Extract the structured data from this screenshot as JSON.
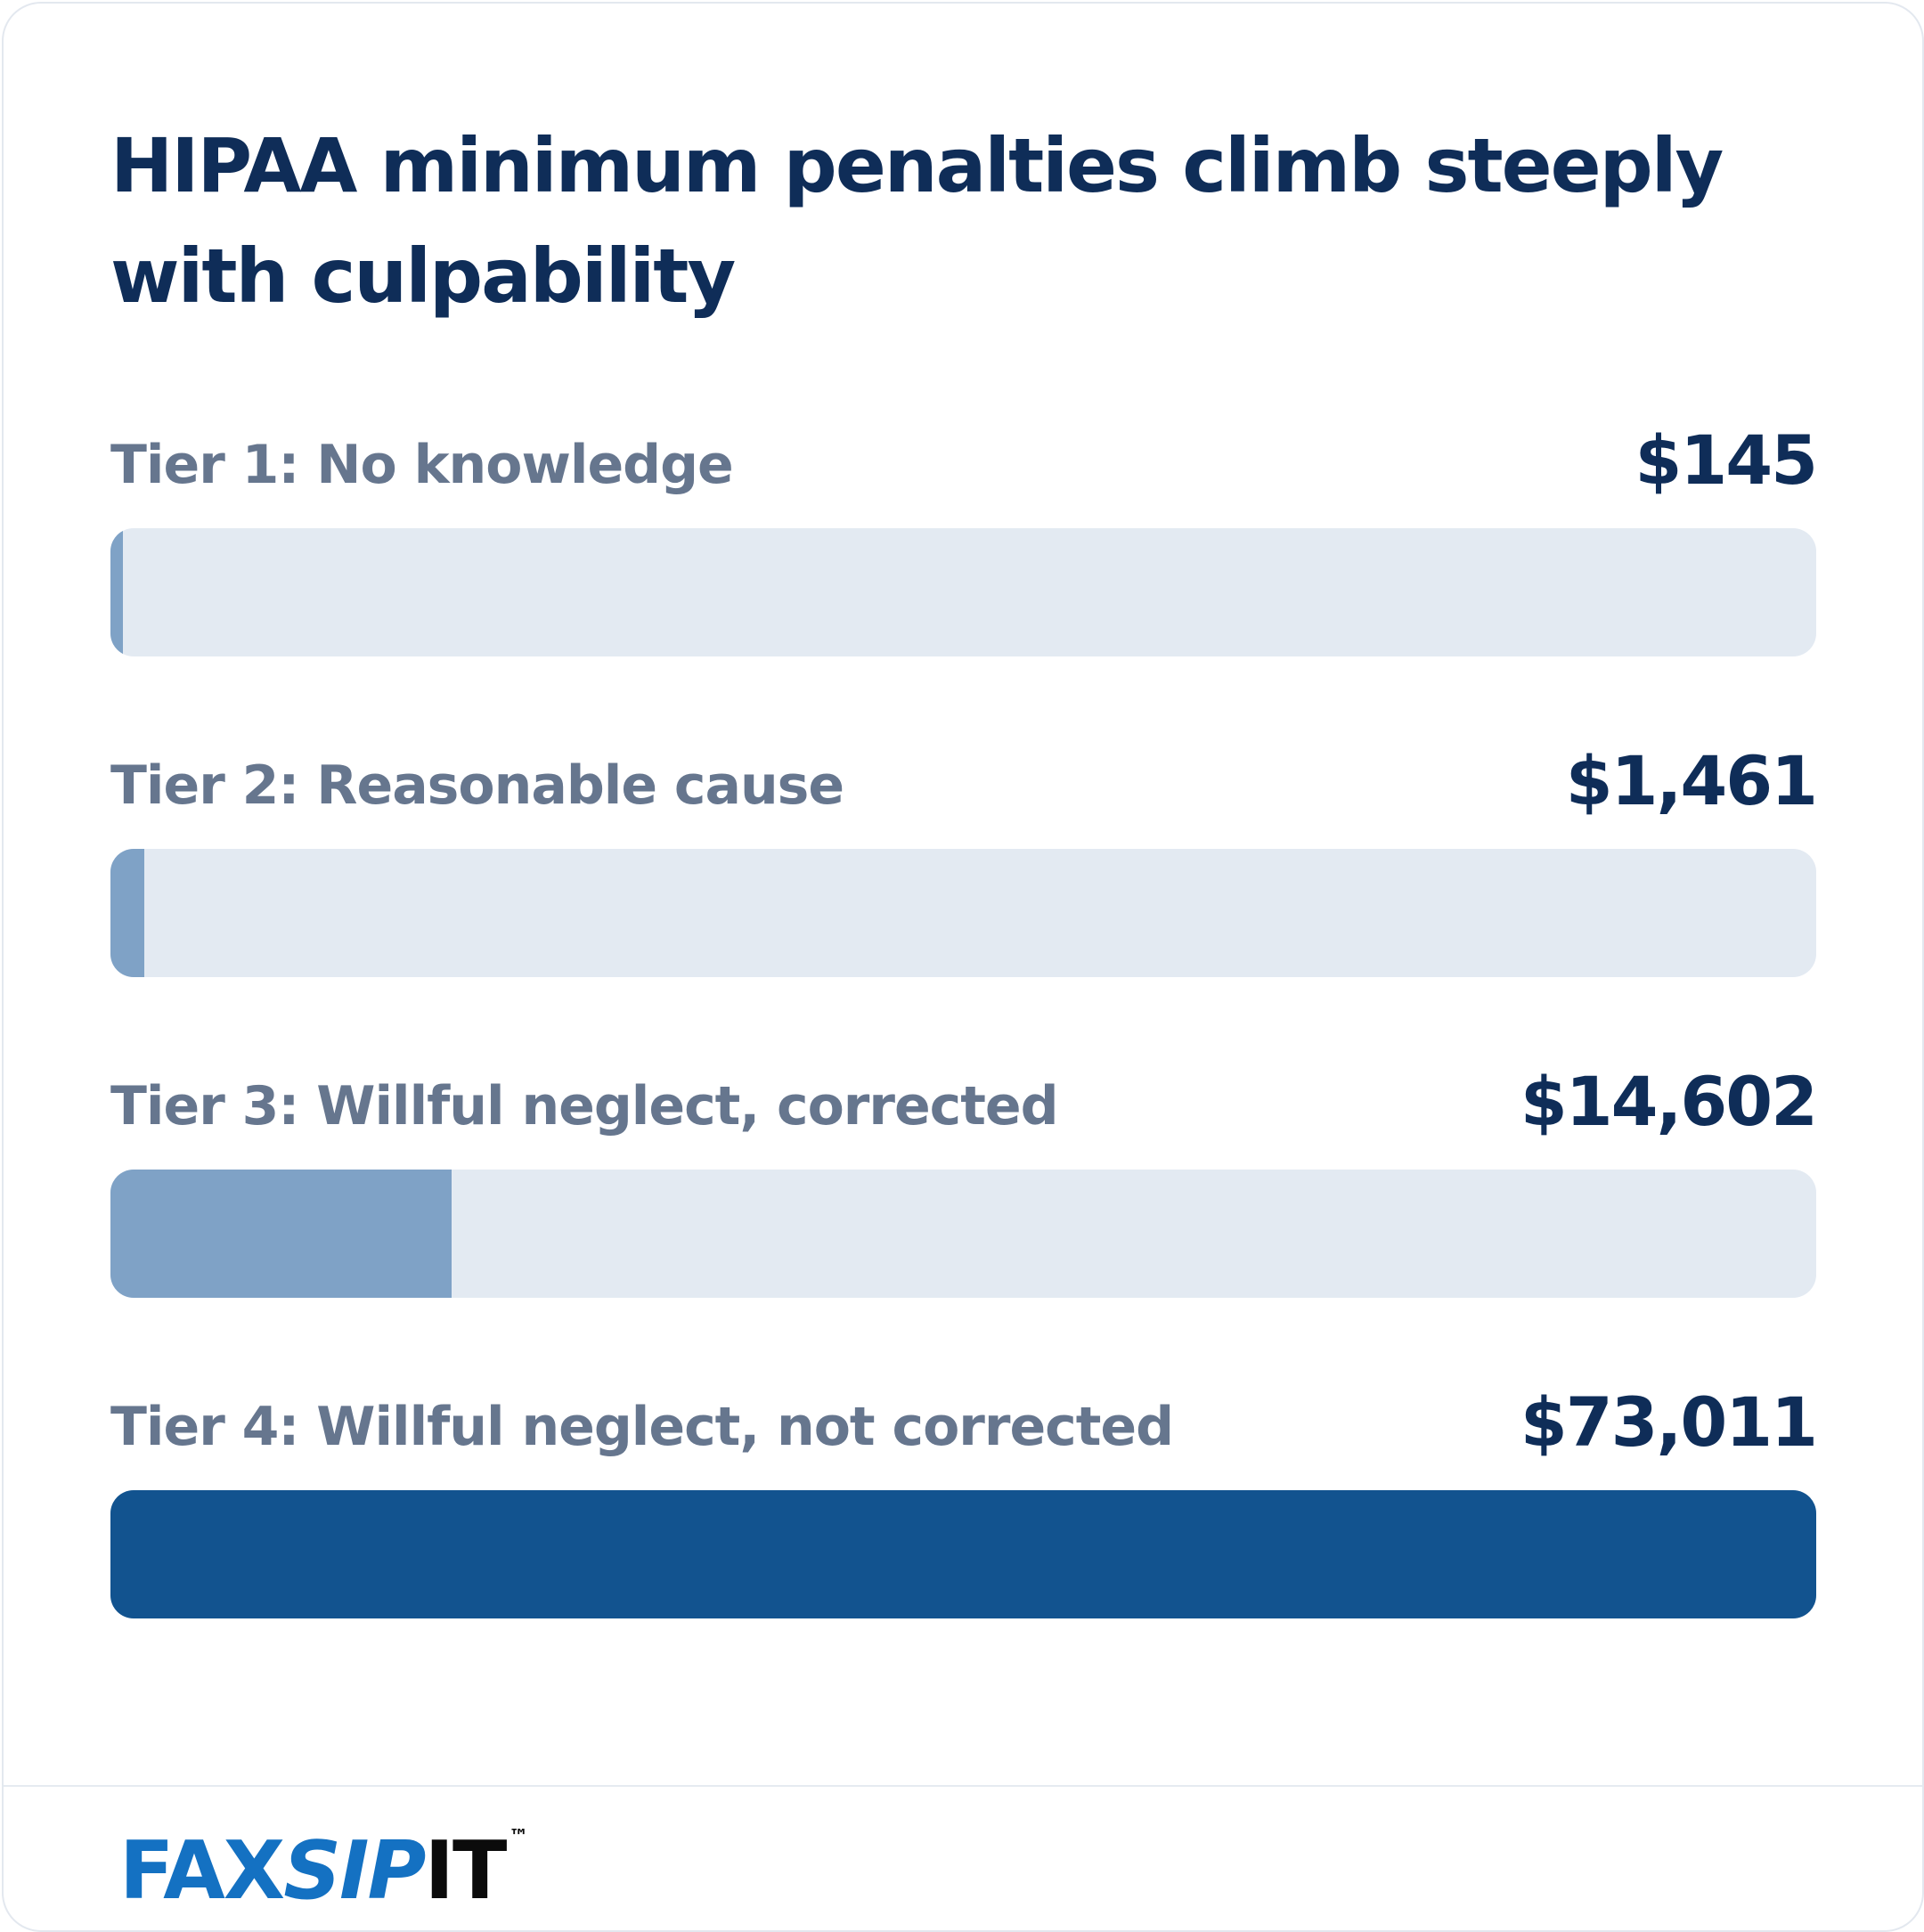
{
  "chart_data": {
    "type": "bar",
    "orientation": "horizontal",
    "title": "HIPAA minimum penalties climb steeply with culpability",
    "categories": [
      "Tier 1: No knowledge",
      "Tier 2: Reasonable cause",
      "Tier 3: Willful neglect, corrected",
      "Tier 4: Willful neglect, not corrected"
    ],
    "values": [
      145,
      1461,
      14602,
      73011
    ],
    "value_labels": [
      "$145",
      "$1,461",
      "$14,602",
      "$73,011"
    ],
    "xlim": [
      0,
      73011
    ],
    "grid": false,
    "legend": "none",
    "colors": {
      "fill": "#7fa2c6",
      "fill_max": "#12538f",
      "track": "#e3eaf2",
      "title": "#0f2d58",
      "label": "#66768e"
    }
  },
  "footer": {
    "logo": {
      "part_fax": "FAX",
      "part_sip": "SIP",
      "part_it": "IT",
      "trademark": "™",
      "colors": {
        "brand": "#1471c2",
        "dark": "#0b0b0b"
      }
    }
  }
}
